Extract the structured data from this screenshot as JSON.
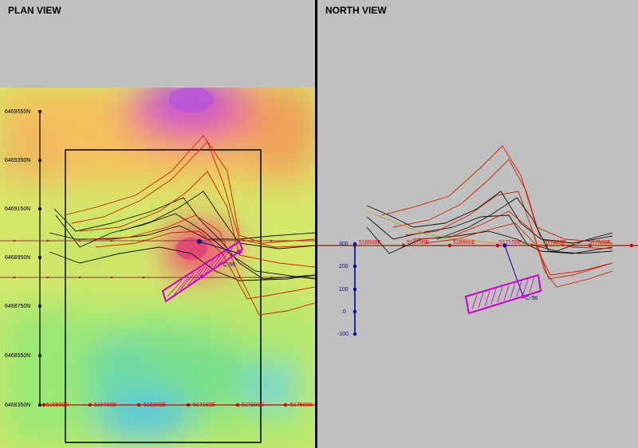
{
  "plan_view": {
    "title": "PLAN VIEW",
    "northings": [
      "6469550N",
      "6469350N",
      "6469150N",
      "6468950N",
      "6468750N",
      "6468550N",
      "6468350N"
    ],
    "eastings": [
      "516500E",
      "516700E",
      "516900E",
      "517100E",
      "517300E",
      "517500E"
    ],
    "hole_label": "C-56"
  },
  "north_view": {
    "title": "NORTH VIEW",
    "eastings": [
      "516500E",
      "516700E",
      "516900E",
      "517100E",
      "517300E",
      "517500E"
    ],
    "elevations": [
      "300",
      "200",
      "100",
      "0",
      "-100"
    ],
    "hole_label": "C-56"
  },
  "colors": {
    "background": "#c0c0c0",
    "grid_axis": "#cc0000",
    "elevation_axis": "#0000aa",
    "drill_trace": "#cc00cc",
    "profile_red": "#cc2200",
    "profile_black": "#111111"
  }
}
